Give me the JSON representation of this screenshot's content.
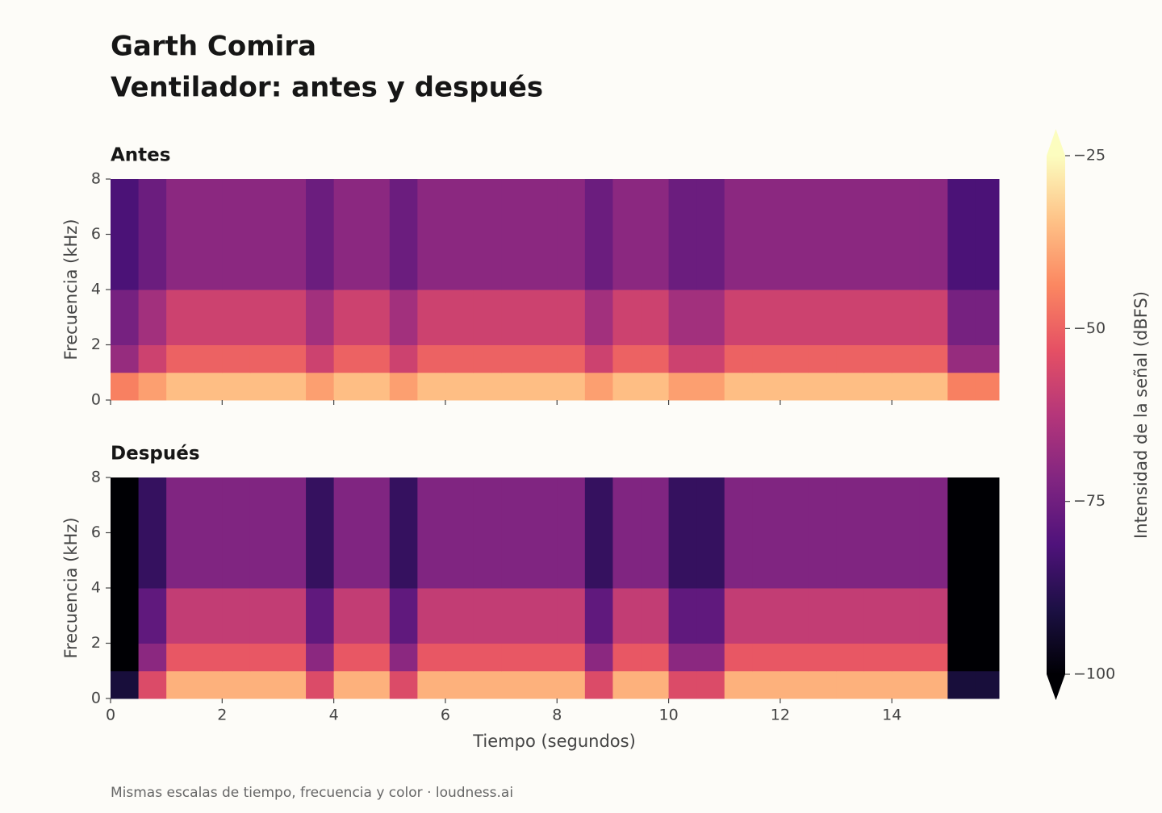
{
  "title": "Garth Comira",
  "subtitle": "Ventilador: antes y después",
  "xlabel": "Tiempo (segundos)",
  "footer": "Mismas escalas de tiempo, frecuencia y color  ·  loudness.ai",
  "colorbar": {
    "label": "Intensidad de la señal (dBFS)",
    "lim": [
      -100,
      -25
    ],
    "extend": "both",
    "ticks": [
      {
        "value": -25,
        "label": "−25"
      },
      {
        "value": -50,
        "label": "−50"
      },
      {
        "value": -75,
        "label": "−75"
      },
      {
        "value": -100,
        "label": "−100"
      }
    ],
    "colormap": [
      "#000004",
      "#1c1044",
      "#4f127b",
      "#812581",
      "#b5367a",
      "#e55064",
      "#fb8761",
      "#fec287",
      "#fcfdbf"
    ]
  },
  "chart_data": [
    {
      "type": "heatmap",
      "title": "Antes",
      "ylabel": "Frecuencia (kHz)",
      "x_edges": [
        0,
        0.5,
        1,
        1.5,
        2,
        2.5,
        3,
        3.5,
        4,
        4.5,
        5,
        5.5,
        6,
        6.5,
        7,
        7.5,
        8,
        8.5,
        9,
        9.5,
        10,
        10.5,
        11,
        11.5,
        12,
        12.5,
        13,
        13.5,
        14,
        14.5,
        15,
        15.5,
        15.92
      ],
      "y_edges": [
        0,
        1,
        2,
        4,
        8
      ],
      "z": [
        [
          -45,
          -40,
          -35,
          -35,
          -35,
          -35,
          -35,
          -40,
          -35,
          -35,
          -40,
          -35,
          -35,
          -35,
          -35,
          -35,
          -35,
          -40,
          -35,
          -35,
          -40,
          -40,
          -35,
          -35,
          -35,
          -35,
          -35,
          -35,
          -35,
          -35,
          -45,
          -45
        ],
        [
          -68,
          -58,
          -50,
          -50,
          -50,
          -50,
          -50,
          -58,
          -50,
          -50,
          -58,
          -50,
          -50,
          -50,
          -50,
          -50,
          -50,
          -58,
          -50,
          -50,
          -58,
          -58,
          -50,
          -50,
          -50,
          -50,
          -50,
          -50,
          -50,
          -50,
          -68,
          -68
        ],
        [
          -74,
          -66,
          -58,
          -58,
          -58,
          -58,
          -58,
          -66,
          -58,
          -58,
          -66,
          -58,
          -58,
          -58,
          -58,
          -58,
          -58,
          -66,
          -58,
          -58,
          -66,
          -66,
          -58,
          -58,
          -58,
          -58,
          -58,
          -58,
          -58,
          -58,
          -74,
          -74
        ],
        [
          -82,
          -76,
          -70,
          -70,
          -70,
          -70,
          -70,
          -76,
          -70,
          -70,
          -76,
          -70,
          -70,
          -70,
          -70,
          -70,
          -70,
          -76,
          -70,
          -70,
          -76,
          -76,
          -70,
          -70,
          -70,
          -70,
          -70,
          -70,
          -70,
          -70,
          -82,
          -82
        ]
      ],
      "xlim": [
        0,
        15.92
      ],
      "ylim": [
        0,
        8
      ],
      "xticks": [
        0,
        2,
        4,
        6,
        8,
        10,
        12,
        14
      ],
      "xtick_labels": false,
      "yticks": [
        0,
        2,
        4,
        6,
        8
      ]
    },
    {
      "type": "heatmap",
      "title": "Después",
      "ylabel": "Frecuencia (kHz)",
      "x_edges": [
        0,
        0.5,
        1,
        1.5,
        2,
        2.5,
        3,
        3.5,
        4,
        4.5,
        5,
        5.5,
        6,
        6.5,
        7,
        7.5,
        8,
        8.5,
        9,
        9.5,
        10,
        10.5,
        11,
        11.5,
        12,
        12.5,
        13,
        13.5,
        14,
        14.5,
        15,
        15.5,
        15.92
      ],
      "y_edges": [
        0,
        1,
        2,
        4,
        8
      ],
      "z": [
        [
          -92,
          -55,
          -37,
          -37,
          -37,
          -37,
          -37,
          -55,
          -37,
          -37,
          -55,
          -37,
          -37,
          -37,
          -37,
          -37,
          -37,
          -55,
          -37,
          -37,
          -55,
          -55,
          -37,
          -37,
          -37,
          -37,
          -37,
          -37,
          -37,
          -37,
          -92,
          -92
        ],
        [
          -100,
          -70,
          -52,
          -52,
          -52,
          -52,
          -52,
          -70,
          -52,
          -52,
          -70,
          -52,
          -52,
          -52,
          -52,
          -52,
          -52,
          -70,
          -52,
          -52,
          -70,
          -70,
          -52,
          -52,
          -52,
          -52,
          -52,
          -52,
          -52,
          -52,
          -100,
          -100
        ],
        [
          -100,
          -78,
          -60,
          -60,
          -60,
          -60,
          -60,
          -78,
          -60,
          -60,
          -78,
          -60,
          -60,
          -60,
          -60,
          -60,
          -60,
          -78,
          -60,
          -60,
          -78,
          -78,
          -60,
          -60,
          -60,
          -60,
          -60,
          -60,
          -60,
          -60,
          -100,
          -100
        ],
        [
          -100,
          -86,
          -72,
          -72,
          -72,
          -72,
          -72,
          -86,
          -72,
          -72,
          -86,
          -72,
          -72,
          -72,
          -72,
          -72,
          -72,
          -86,
          -72,
          -72,
          -86,
          -86,
          -72,
          -72,
          -72,
          -72,
          -72,
          -72,
          -72,
          -72,
          -100,
          -100
        ]
      ],
      "xlim": [
        0,
        15.92
      ],
      "ylim": [
        0,
        8
      ],
      "xticks": [
        0,
        2,
        4,
        6,
        8,
        10,
        12,
        14
      ],
      "xtick_labels": true,
      "yticks": [
        0,
        2,
        4,
        6,
        8
      ]
    }
  ]
}
